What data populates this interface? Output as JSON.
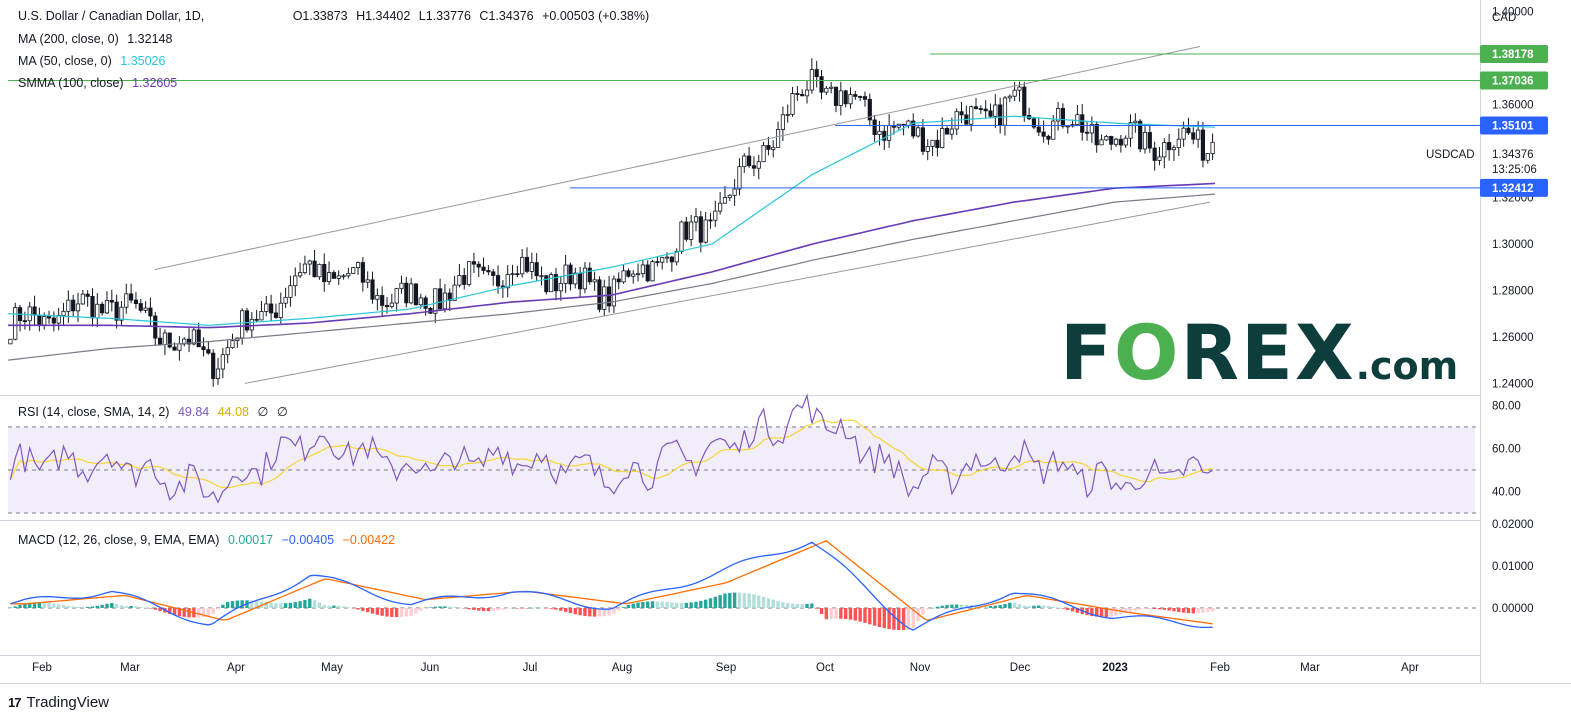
{
  "header": {
    "symbol_title": "U.S. Dollar / Canadian Dollar, 1D,",
    "ohlc": {
      "o": "O1.33873",
      "h": "H1.34402",
      "l": "L1.33776",
      "c": "C1.34376",
      "change": "+0.00503 (+0.38%)"
    },
    "ma200": {
      "label": "MA (200, close, 0)",
      "value": "1.32148",
      "color": "#787b86"
    },
    "ma50": {
      "label": "MA (50, close, 0)",
      "value": "1.35026",
      "color": "#26c6da"
    },
    "smma100": {
      "label": "SMMA (100, close)",
      "value": "1.32605",
      "color": "#673ab7"
    }
  },
  "rsi_header": {
    "label": "RSI (14, close, SMA, 14, 2)",
    "rsi": "49.84",
    "sma": "44.08",
    "extra1": "∅",
    "extra2": "∅",
    "rsi_color": "#7e57c2",
    "sma_color": "#f5d535"
  },
  "macd_header": {
    "label": "MACD (12, 26, close, 9, EMA, EMA)",
    "hist": "0.00017",
    "macd": "−0.00405",
    "signal": "−0.00422",
    "hist_color": "#26a69a",
    "macd_color": "#2962ff",
    "signal_color": "#ff6d00"
  },
  "price_axis": {
    "currency": "CAD",
    "ticks": [
      "1.40000",
      "1.36000",
      "1.32000",
      "1.30000",
      "1.28000",
      "1.26000",
      "1.24000"
    ]
  },
  "rsi_axis": {
    "ticks": [
      "80.00",
      "60.00",
      "40.00"
    ]
  },
  "macd_axis": {
    "ticks": [
      "0.02000",
      "0.01000",
      "0.00000"
    ]
  },
  "price_badges": [
    {
      "value": "1.38178",
      "color": "#4caf50"
    },
    {
      "value": "1.37036",
      "color": "#4caf50"
    },
    {
      "value": "1.35101",
      "color": "#2962ff"
    },
    {
      "value": "1.32412",
      "color": "#2962ff"
    }
  ],
  "last_price": {
    "symbol": "USDCAD",
    "value": "1.34376",
    "countdown": "13:25:06"
  },
  "time_axis": [
    "Feb",
    "Mar",
    "Apr",
    "May",
    "Jun",
    "Jul",
    "Aug",
    "Sep",
    "Oct",
    "Nov",
    "Dec",
    "2023",
    "Feb",
    "Mar",
    "Apr"
  ],
  "watermark": {
    "brand": "F",
    "o": "O",
    "rest": "REX",
    "suffix": ".com"
  },
  "footer": {
    "tv_logo": "17",
    "brand": "TradingView"
  },
  "chart_data": {
    "type": "line",
    "title": "U.S. Dollar / Canadian Dollar, 1D",
    "ylim": [
      1.235,
      1.405
    ],
    "x": [
      "2022-02",
      "2022-03",
      "2022-04",
      "2022-05",
      "2022-06",
      "2022-07",
      "2022-08",
      "2022-09",
      "2022-10",
      "2022-11",
      "2022-12",
      "2023-01",
      "2023-02"
    ],
    "series": [
      {
        "name": "USDCAD",
        "values": [
          1.265,
          1.275,
          1.25,
          1.29,
          1.275,
          1.29,
          1.28,
          1.31,
          1.37,
          1.345,
          1.36,
          1.345,
          1.34376
        ]
      },
      {
        "name": "MA (50, close, 0)",
        "values": [
          1.27,
          1.268,
          1.265,
          1.268,
          1.272,
          1.282,
          1.29,
          1.3,
          1.33,
          1.352,
          1.355,
          1.352,
          1.35026
        ]
      },
      {
        "name": "SMMA (100, close)",
        "values": [
          1.265,
          1.265,
          1.264,
          1.266,
          1.27,
          1.275,
          1.278,
          1.288,
          1.3,
          1.31,
          1.318,
          1.324,
          1.32605
        ]
      },
      {
        "name": "MA (200, close, 0)",
        "values": [
          1.25,
          1.255,
          1.258,
          1.262,
          1.266,
          1.27,
          1.275,
          1.283,
          1.293,
          1.302,
          1.31,
          1.318,
          1.32148
        ]
      }
    ],
    "levels": [
      1.38178,
      1.37036,
      1.35101,
      1.32412
    ],
    "rsi": {
      "values": [
        52,
        55,
        40,
        66,
        50,
        57,
        47,
        59,
        78,
        44,
        57,
        44,
        49.84
      ],
      "sma_last": 44.08,
      "bands": [
        30,
        70
      ],
      "mid": 50
    },
    "macd": {
      "macd": [
        0.001,
        0.004,
        -0.004,
        0.008,
        0.001,
        0.004,
        0.0,
        0.008,
        0.016,
        -0.005,
        0.004,
        -0.002,
        -0.00405
      ],
      "signal": [
        0.001,
        0.003,
        -0.003,
        0.007,
        0.002,
        0.004,
        0.001,
        0.006,
        0.016,
        -0.003,
        0.003,
        -0.001,
        -0.00422
      ],
      "hist_last": 0.00017
    }
  }
}
